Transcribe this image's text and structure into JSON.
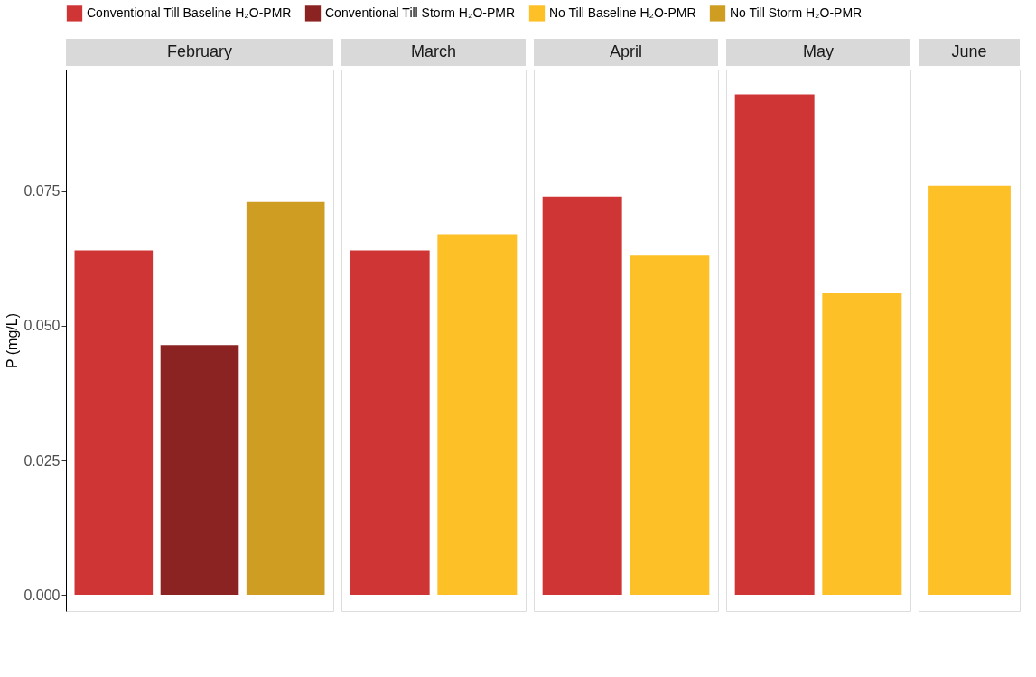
{
  "chart_data": {
    "type": "bar",
    "ylabel": "P (mg/L)",
    "categories": [
      "February",
      "March",
      "April",
      "May",
      "June"
    ],
    "series": [
      {
        "name": "Conventional Till Baseline H₂O-PMR",
        "color": "#d03535",
        "values": [
          0.064,
          0.064,
          0.074,
          0.093,
          null
        ]
      },
      {
        "name": "Conventional Till Storm H₂O-PMR",
        "color": "#8b2323",
        "values": [
          0.0464,
          null,
          null,
          null,
          null
        ]
      },
      {
        "name": "No Till Baseline H₂O-PMR",
        "color": "#fdc026",
        "values": [
          null,
          0.067,
          0.063,
          0.056,
          0.076
        ]
      },
      {
        "name": "No Till Storm H₂O-PMR",
        "color": "#cf9d22",
        "values": [
          0.073,
          null,
          null,
          null,
          null
        ]
      }
    ],
    "ylim": [
      -0.003,
      0.0976
    ],
    "yticks": [
      {
        "value": 0,
        "label": "0.000"
      },
      {
        "value": 0.025,
        "label": "0.025"
      },
      {
        "value": 0.05,
        "label": "0.050"
      },
      {
        "value": 0.075,
        "label": "0.075"
      }
    ],
    "grid": false,
    "legend": "top"
  }
}
